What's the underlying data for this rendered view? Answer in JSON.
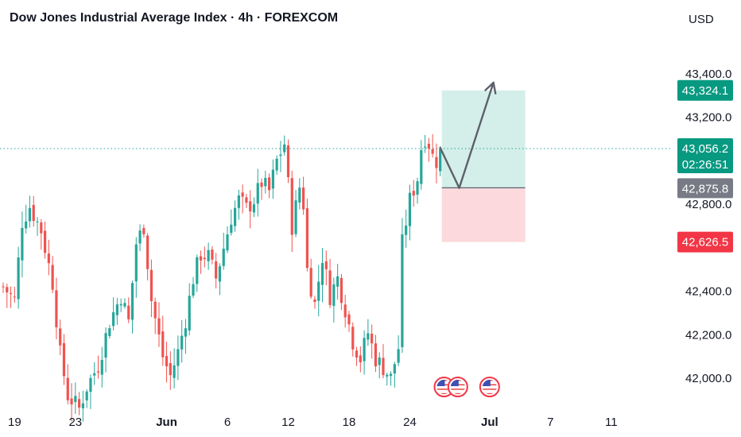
{
  "header": {
    "title": "Dow Jones Industrial Average Index · 4h · FOREXCOM",
    "currency": "USD"
  },
  "colors": {
    "up": "#26a69a",
    "down": "#ef5350",
    "target_zone": "#d4efe9",
    "stop_zone": "#fcd9dc",
    "last_price_badge": "#089981",
    "entry_badge": "#787b86",
    "stop_badge": "#f23645",
    "arrow": "#5d606b"
  },
  "chart_data": {
    "type": "candlestick",
    "timeframe": "4h",
    "symbol": "Dow Jones Industrial Average Index",
    "exchange": "FOREXCOM",
    "currency": "USD",
    "y_ticks": [
      42000,
      42200,
      42400,
      42800,
      43200,
      43400
    ],
    "y_tick_labels": [
      "42,000.0",
      "42,200.0",
      "42,400.0",
      "42,800.0",
      "43,200.0",
      "43,400.0"
    ],
    "ylim": [
      41880,
      43560
    ],
    "x_ticks": [
      {
        "label": "19",
        "bar": 3
      },
      {
        "label": "23",
        "bar": 19
      },
      {
        "label": "Jun",
        "bar": 43
      },
      {
        "label": "6",
        "bar": 59
      },
      {
        "label": "12",
        "bar": 75
      },
      {
        "label": "18",
        "bar": 91
      },
      {
        "label": "24",
        "bar": 107
      },
      {
        "label": "Jul",
        "bar": 128
      },
      {
        "label": "7",
        "bar": 144
      },
      {
        "label": "11",
        "bar": 160
      }
    ],
    "bars_total": 180,
    "candle_close_path": [
      [
        0,
        42420
      ],
      [
        3,
        42360
      ],
      [
        5,
        42720
      ],
      [
        7,
        42790
      ],
      [
        10,
        42680
      ],
      [
        13,
        42440
      ],
      [
        15,
        42110
      ],
      [
        17,
        41920
      ],
      [
        20,
        41860
      ],
      [
        22,
        41960
      ],
      [
        25,
        42060
      ],
      [
        28,
        42260
      ],
      [
        31,
        42380
      ],
      [
        33,
        42260
      ],
      [
        35,
        42620
      ],
      [
        37,
        42700
      ],
      [
        39,
        42360
      ],
      [
        42,
        42100
      ],
      [
        44,
        42010
      ],
      [
        46,
        42120
      ],
      [
        48,
        42270
      ],
      [
        50,
        42460
      ],
      [
        52,
        42570
      ],
      [
        54,
        42560
      ],
      [
        56,
        42460
      ],
      [
        58,
        42600
      ],
      [
        60,
        42740
      ],
      [
        62,
        42820
      ],
      [
        64,
        42780
      ],
      [
        66,
        42820
      ],
      [
        68,
        42900
      ],
      [
        70,
        42860
      ],
      [
        72,
        43000
      ],
      [
        74,
        43080
      ],
      [
        76,
        42700
      ],
      [
        78,
        42880
      ],
      [
        79,
        42800
      ],
      [
        80,
        42500
      ],
      [
        82,
        42340
      ],
      [
        84,
        42560
      ],
      [
        86,
        42380
      ],
      [
        88,
        42460
      ],
      [
        90,
        42320
      ],
      [
        92,
        42170
      ],
      [
        94,
        42090
      ],
      [
        96,
        42210
      ],
      [
        98,
        42090
      ],
      [
        100,
        42050
      ],
      [
        102,
        42000
      ],
      [
        104,
        42140
      ],
      [
        105,
        42620
      ],
      [
        107,
        42820
      ],
      [
        109,
        42920
      ],
      [
        110,
        43060
      ],
      [
        111,
        43110
      ],
      [
        112,
        43080
      ],
      [
        113,
        43020
      ],
      [
        114,
        43000
      ],
      [
        115,
        43056.2
      ]
    ],
    "last_price": 43056.2,
    "countdown": "02:26:51",
    "position": {
      "direction": "long",
      "entry": 42875.8,
      "target": 43324.1,
      "stop": 42626.5,
      "start_bar": 115,
      "end_bar": 138
    },
    "projection_arrow": [
      [
        115,
        43060
      ],
      [
        120,
        42875
      ],
      [
        129,
        43360
      ]
    ],
    "event_icon_bars": [
      116,
      119,
      128
    ],
    "price_badges": {
      "target": "43,324.1",
      "last": "43,056.2",
      "entry": "42,875.8",
      "stop": "42,626.5"
    }
  }
}
